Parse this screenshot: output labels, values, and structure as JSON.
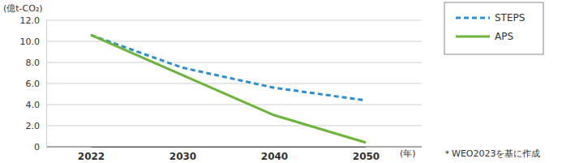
{
  "chart_data": {
    "type": "line",
    "y_label": "(億t-CO₂)",
    "x_label": "(年)",
    "note": "＊WEO2023を基に作成",
    "categories": [
      "2022",
      "2030",
      "2040",
      "2050"
    ],
    "series": [
      {
        "name": "STEPS",
        "color": "#2b8fd6",
        "line_style": "dashed",
        "values": [
          10.6,
          7.5,
          5.6,
          4.4
        ]
      },
      {
        "name": "APS",
        "color": "#6cb53a",
        "line_style": "solid",
        "values": [
          10.6,
          6.8,
          3.0,
          0.4
        ]
      }
    ],
    "ylim": [
      0,
      12
    ],
    "yticks": [
      0,
      {
        "value": 2,
        "label": "2.0"
      },
      {
        "value": 4,
        "label": "4.0"
      },
      {
        "value": 6,
        "label": "6.0"
      },
      {
        "value": 8,
        "label": "8.0"
      },
      {
        "value": 10,
        "label": "10.0"
      },
      {
        "value": 12,
        "label": "12.0"
      }
    ],
    "grid": true,
    "legend": "right"
  }
}
